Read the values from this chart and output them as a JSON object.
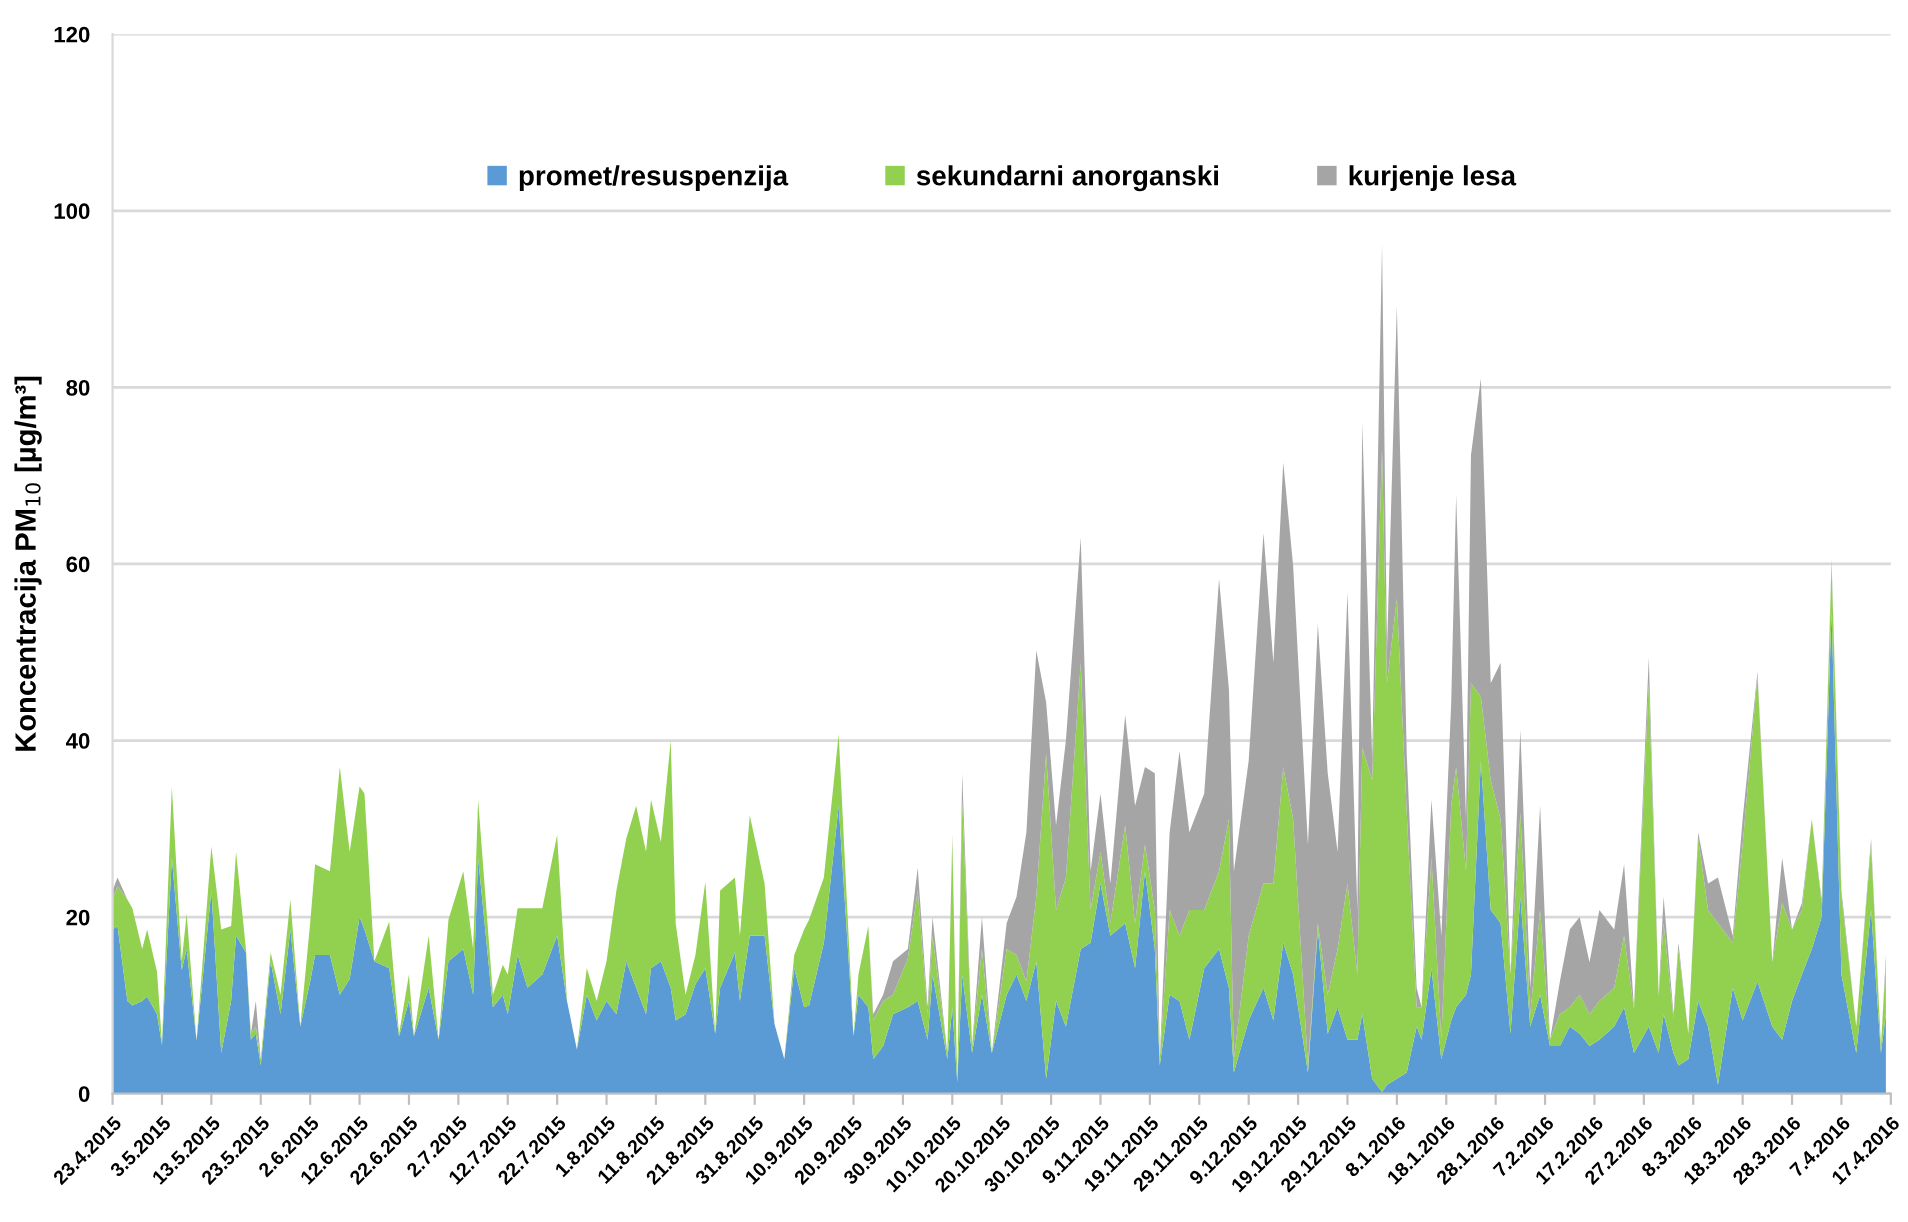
{
  "chart_data": {
    "type": "area",
    "stacked": true,
    "ylabel": "Koncentracija PM$_{10}$ [µg/m³]",
    "x": [
      "2015-04-23",
      "2015-04-24",
      "2015-04-26",
      "2015-04-27",
      "2015-04-29",
      "2015-04-30",
      "2015-05-02",
      "2015-05-03",
      "2015-05-05",
      "2015-05-07",
      "2015-05-08",
      "2015-05-10",
      "2015-05-13",
      "2015-05-15",
      "2015-05-17",
      "2015-05-18",
      "2015-05-20",
      "2015-05-21",
      "2015-05-22",
      "2015-05-23",
      "2015-05-25",
      "2015-05-27",
      "2015-05-29",
      "2015-05-31",
      "2015-06-02",
      "2015-06-03",
      "2015-06-06",
      "2015-06-08",
      "2015-06-10",
      "2015-06-12",
      "2015-06-13",
      "2015-06-15",
      "2015-06-18",
      "2015-06-20",
      "2015-06-22",
      "2015-06-23",
      "2015-06-26",
      "2015-06-28",
      "2015-06-30",
      "2015-07-03",
      "2015-07-05",
      "2015-07-06",
      "2015-07-09",
      "2015-07-11",
      "2015-07-12",
      "2015-07-14",
      "2015-07-16",
      "2015-07-19",
      "2015-07-22",
      "2015-07-24",
      "2015-07-26",
      "2015-07-28",
      "2015-07-30",
      "2015-08-01",
      "2015-08-03",
      "2015-08-05",
      "2015-08-07",
      "2015-08-09",
      "2015-08-10",
      "2015-08-12",
      "2015-08-14",
      "2015-08-15",
      "2015-08-17",
      "2015-08-19",
      "2015-08-21",
      "2015-08-23",
      "2015-08-24",
      "2015-08-27",
      "2015-08-28",
      "2015-08-30",
      "2015-09-02",
      "2015-09-04",
      "2015-09-06",
      "2015-09-08",
      "2015-09-10",
      "2015-09-11",
      "2015-09-14",
      "2015-09-17",
      "2015-09-20",
      "2015-09-21",
      "2015-09-23",
      "2015-09-24",
      "2015-09-26",
      "2015-09-28",
      "2015-10-01",
      "2015-10-03",
      "2015-10-05",
      "2015-10-06",
      "2015-10-09",
      "2015-10-10",
      "2015-10-11",
      "2015-10-12",
      "2015-10-14",
      "2015-10-16",
      "2015-10-18",
      "2015-10-21",
      "2015-10-23",
      "2015-10-25",
      "2015-10-27",
      "2015-10-29",
      "2015-10-31",
      "2015-11-02",
      "2015-11-05",
      "2015-11-07",
      "2015-11-09",
      "2015-11-11",
      "2015-11-14",
      "2015-11-16",
      "2015-11-18",
      "2015-11-20",
      "2015-11-21",
      "2015-11-23",
      "2015-11-25",
      "2015-11-27",
      "2015-11-30",
      "2015-12-03",
      "2015-12-05",
      "2015-12-06",
      "2015-12-09",
      "2015-12-12",
      "2015-12-14",
      "2015-12-16",
      "2015-12-18",
      "2015-12-21",
      "2015-12-23",
      "2015-12-25",
      "2015-12-27",
      "2015-12-29",
      "2015-12-31",
      "2016-01-01",
      "2016-01-03",
      "2016-01-05",
      "2016-01-06",
      "2016-01-08",
      "2016-01-10",
      "2016-01-12",
      "2016-01-13",
      "2016-01-15",
      "2016-01-17",
      "2016-01-19",
      "2016-01-20",
      "2016-01-22",
      "2016-01-23",
      "2016-01-25",
      "2016-01-27",
      "2016-01-29",
      "2016-01-31",
      "2016-02-02",
      "2016-02-04",
      "2016-02-06",
      "2016-02-08",
      "2016-02-10",
      "2016-02-12",
      "2016-02-14",
      "2016-02-16",
      "2016-02-18",
      "2016-02-21",
      "2016-02-23",
      "2016-02-25",
      "2016-02-28",
      "2016-03-01",
      "2016-03-02",
      "2016-03-04",
      "2016-03-05",
      "2016-03-07",
      "2016-03-09",
      "2016-03-11",
      "2016-03-13",
      "2016-03-16",
      "2016-03-18",
      "2016-03-21",
      "2016-03-24",
      "2016-03-26",
      "2016-03-28",
      "2016-03-30",
      "2016-04-01",
      "2016-04-03",
      "2016-04-05",
      "2016-04-07",
      "2016-04-10",
      "2016-04-13",
      "2016-04-15",
      "2016-04-16"
    ],
    "series": [
      {
        "name": "promet/resuspenzija",
        "color": "#5b9bd5",
        "values": [
          18.6,
          19,
          10.5,
          10,
          10.5,
          11,
          9,
          5.5,
          26.7,
          14,
          16.4,
          6,
          23,
          4.6,
          10.5,
          17.9,
          16,
          6.1,
          6.8,
          3.2,
          15,
          9,
          18.6,
          7.6,
          12.7,
          15.7,
          15.7,
          11.2,
          13,
          20,
          18.6,
          15,
          14.2,
          6.5,
          10.5,
          6.5,
          12,
          6.1,
          15,
          16.4,
          11.2,
          26.7,
          9.8,
          11.2,
          9,
          15.7,
          12,
          13.5,
          17.9,
          10.5,
          5,
          11.2,
          8.3,
          10.5,
          9,
          15,
          12,
          9,
          14.2,
          15,
          12,
          8.3,
          9,
          12.4,
          14.2,
          6.8,
          12,
          16,
          10.5,
          17.9,
          17.9,
          7.9,
          3.9,
          14.2,
          9.8,
          10,
          17.1,
          32.6,
          6.5,
          11.2,
          9.8,
          3.9,
          5.4,
          9,
          9.8,
          10.5,
          6.1,
          13.5,
          3.9,
          9.8,
          1.3,
          13.5,
          4.6,
          11.2,
          4.6,
          11.2,
          13.5,
          10.5,
          15,
          1.7,
          10.5,
          7.6,
          16.4,
          17.1,
          23.8,
          17.9,
          19.3,
          14.2,
          25.2,
          16.4,
          3.2,
          11.2,
          10.5,
          6.1,
          14.2,
          16.4,
          12,
          2.4,
          8.3,
          12,
          8.3,
          17.1,
          13.5,
          2.4,
          18.6,
          6.8,
          9.8,
          6.1,
          6.1,
          9,
          1.7,
          0.2,
          1,
          1.7,
          2.4,
          7.6,
          6.1,
          14.2,
          3.9,
          8.3,
          9.8,
          11.2,
          13.5,
          37.7,
          20.8,
          19.3,
          6.8,
          22.3,
          7.6,
          11.2,
          5.4,
          5.4,
          7.6,
          6.8,
          5.4,
          6.1,
          7.6,
          9.8,
          4.6,
          7.6,
          4.6,
          9,
          4.6,
          3.2,
          3.9,
          10.5,
          7.6,
          1,
          12,
          8.3,
          12.7,
          7.6,
          6.1,
          10.5,
          13.5,
          16.4,
          20,
          54.6,
          13.5,
          4.6,
          20.8,
          4.6,
          9
        ]
      },
      {
        "name": "sekundarni anorganski",
        "color": "#92d050",
        "values": [
          3.4,
          4.5,
          11.5,
          11,
          5.9,
          7.6,
          4.8,
          0.2,
          8.1,
          1,
          4,
          0,
          5,
          14,
          8.5,
          9.5,
          0.4,
          0.7,
          0.8,
          0.7,
          1,
          2.2,
          3.4,
          0,
          6.6,
          10.3,
          9.5,
          25.8,
          14.4,
          14.8,
          15.4,
          0,
          5.3,
          0.3,
          3,
          0,
          5.9,
          0,
          4.7,
          8.8,
          5.2,
          6.6,
          1.4,
          3.4,
          4.5,
          5.3,
          9,
          7.5,
          11.4,
          0,
          0,
          3,
          2.2,
          4.5,
          14,
          13.9,
          20.6,
          18.4,
          19.1,
          13.5,
          28,
          11,
          2.2,
          3.3,
          9.8,
          0,
          11,
          8.5,
          7.4,
          13.6,
          5.9,
          0,
          0,
          1.5,
          8.8,
          9.7,
          7.4,
          8.1,
          0,
          2.3,
          9.2,
          4.4,
          5.1,
          2.2,
          5.5,
          12.5,
          2.9,
          4.4,
          0.7,
          19.1,
          0,
          19.8,
          0.8,
          5.2,
          0,
          5.2,
          2.2,
          2.2,
          7.3,
          36.8,
          10.3,
          16.9,
          32.4,
          3.7,
          3.6,
          1.4,
          11.1,
          5.1,
          3,
          4.4,
          0.7,
          9.6,
          7.4,
          14.7,
          6.6,
          8.8,
          19.1,
          1.5,
          9.6,
          11.8,
          15.5,
          19.9,
          17.6,
          0.8,
          0.7,
          4.4,
          6.6,
          17.7,
          7.4,
          30.2,
          33.8,
          72.8,
          45.5,
          54.4,
          29.4,
          2.2,
          3.7,
          12.5,
          2.2,
          24.3,
          27.2,
          14,
          33,
          7.3,
          14.7,
          11.8,
          6.7,
          9.5,
          1.4,
          9.6,
          0.7,
          3.6,
          2.2,
          4.4,
          3.6,
          4.4,
          4.4,
          8.1,
          4.9,
          38.9,
          6.4,
          10.3,
          3.9,
          13.2,
          2.9,
          18.4,
          13.2,
          18.3,
          5.1,
          19.9,
          34.6,
          7.3,
          15.5,
          8.1,
          7.3,
          14.7,
          1.5,
          5.4,
          8.8,
          3,
          7.4,
          0.8,
          5.9
        ]
      },
      {
        "name": "kurjenje lesa",
        "color": "#a5a5a5",
        "values": [
          1,
          1,
          0,
          0,
          0,
          0,
          0,
          0,
          0,
          0,
          0,
          0,
          0,
          0,
          0,
          0,
          0,
          0,
          2.9,
          0,
          0,
          0,
          0,
          0,
          0,
          0,
          0,
          0,
          0,
          0,
          0,
          0,
          0,
          0,
          0,
          0,
          0,
          0,
          0,
          0,
          0,
          0,
          0,
          0,
          0,
          0,
          0,
          0,
          0,
          0,
          0,
          0,
          0,
          0,
          0,
          0,
          0,
          0,
          0,
          0,
          0,
          0,
          0,
          0,
          0,
          0,
          0,
          0,
          0,
          0,
          0,
          0,
          0,
          0,
          0,
          0,
          0,
          0,
          0,
          0,
          0,
          0.7,
          0.7,
          3.8,
          1.1,
          2.6,
          0.8,
          2.1,
          0,
          0.4,
          0,
          3,
          0,
          3.6,
          0,
          2.9,
          6.6,
          16.9,
          27.9,
          5.8,
          9.6,
          15.5,
          14.2,
          4.4,
          6.6,
          4.5,
          12.5,
          13.3,
          8.8,
          15.5,
          0,
          8.8,
          20.9,
          8.8,
          13.2,
          33.1,
          14.7,
          21.3,
          19.8,
          39.7,
          25,
          34.5,
          28.7,
          25,
          33.9,
          25.1,
          11,
          33,
          7.3,
          36.8,
          2.5,
          23.2,
          3.7,
          33.1,
          6.7,
          2.2,
          0,
          6.6,
          11.8,
          11.7,
          30.8,
          5.9,
          25.8,
          36,
          11,
          17.7,
          0,
          9.4,
          3,
          11.8,
          0,
          3.7,
          8.8,
          8.8,
          5.9,
          10.3,
          6.6,
          8.1,
          0.3,
          2.9,
          0.2,
          3,
          0.5,
          0.7,
          0,
          0.7,
          3,
          5.2,
          0.8,
          2.9,
          0.5,
          0,
          5.1,
          0,
          0.8,
          0,
          0.5,
          0.5,
          0.7,
          0,
          0.7,
          0,
          0.8
        ]
      }
    ],
    "xlim": [
      "2015-04-23",
      "2016-04-17"
    ],
    "xticks": [
      {
        "value": "2015-04-23",
        "label": "23.4.2015"
      },
      {
        "value": "2015-05-03",
        "label": "3.5.2015"
      },
      {
        "value": "2015-05-13",
        "label": "13.5.2015"
      },
      {
        "value": "2015-05-23",
        "label": "23.5.2015"
      },
      {
        "value": "2015-06-02",
        "label": "2.6.2015"
      },
      {
        "value": "2015-06-12",
        "label": "12.6.2015"
      },
      {
        "value": "2015-06-22",
        "label": "22.6.2015"
      },
      {
        "value": "2015-07-02",
        "label": "2.7.2015"
      },
      {
        "value": "2015-07-12",
        "label": "12.7.2015"
      },
      {
        "value": "2015-07-22",
        "label": "22.7.2015"
      },
      {
        "value": "2015-08-01",
        "label": "1.8.2015"
      },
      {
        "value": "2015-08-11",
        "label": "11.8.2015"
      },
      {
        "value": "2015-08-21",
        "label": "21.8.2015"
      },
      {
        "value": "2015-08-31",
        "label": "31.8.2015"
      },
      {
        "value": "2015-09-10",
        "label": "10.9.2015"
      },
      {
        "value": "2015-09-20",
        "label": "20.9.2015"
      },
      {
        "value": "2015-09-30",
        "label": "30.9.2015"
      },
      {
        "value": "2015-10-10",
        "label": "10.10.2015"
      },
      {
        "value": "2015-10-20",
        "label": "20.10.2015"
      },
      {
        "value": "2015-10-30",
        "label": "30.10.2015"
      },
      {
        "value": "2015-11-09",
        "label": "9.11.2015"
      },
      {
        "value": "2015-11-19",
        "label": "19.11.2015"
      },
      {
        "value": "2015-11-29",
        "label": "29.11.2015"
      },
      {
        "value": "2015-12-09",
        "label": "9.12.2015"
      },
      {
        "value": "2015-12-19",
        "label": "19.12.2015"
      },
      {
        "value": "2015-12-29",
        "label": "29.12.2015"
      },
      {
        "value": "2016-01-08",
        "label": "8.1.2016"
      },
      {
        "value": "2016-01-18",
        "label": "18.1.2016"
      },
      {
        "value": "2016-01-28",
        "label": "28.1.2016"
      },
      {
        "value": "2016-02-07",
        "label": "7.2.2016"
      },
      {
        "value": "2016-02-17",
        "label": "17.2.2016"
      },
      {
        "value": "2016-02-27",
        "label": "27.2.2016"
      },
      {
        "value": "2016-03-08",
        "label": "8.3.2016"
      },
      {
        "value": "2016-03-18",
        "label": "18.3.2016"
      },
      {
        "value": "2016-03-28",
        "label": "28.3.2016"
      },
      {
        "value": "2016-04-07",
        "label": "7.4.2016"
      },
      {
        "value": "2016-04-17",
        "label": "17.4.2016"
      }
    ],
    "ylim": [
      0,
      120
    ],
    "yticks": [
      0,
      20,
      40,
      60,
      80,
      100,
      120
    ],
    "grid": "y",
    "legend": "top"
  }
}
